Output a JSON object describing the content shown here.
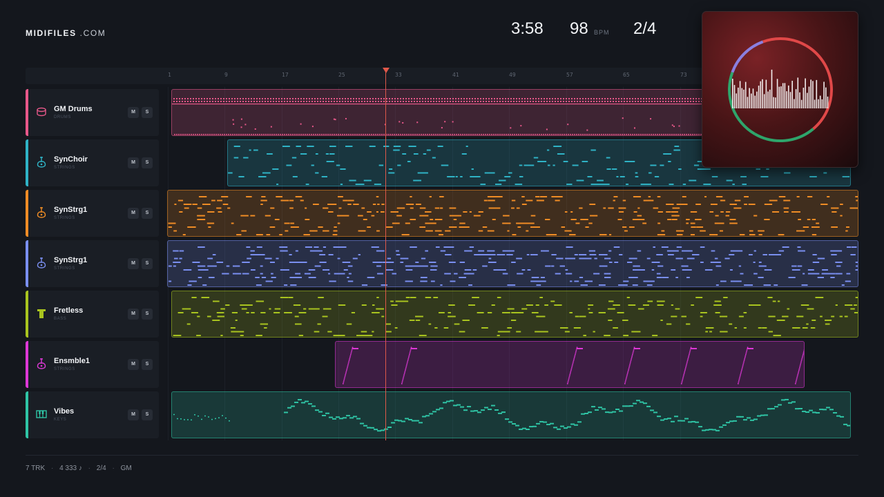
{
  "brand": {
    "name": "MIDIFILES",
    "suffix": ".COM"
  },
  "header": {
    "duration": "3:58",
    "bpm": "98",
    "bpm_unit": "BPM",
    "meter": "2/4"
  },
  "ruler": {
    "ticks": [
      "1",
      "9",
      "17",
      "25",
      "33",
      "41",
      "49",
      "57",
      "65",
      "73"
    ]
  },
  "buttons": {
    "mute": "M",
    "solo": "S"
  },
  "tracks": [
    {
      "name": "GM Drums",
      "sub": "DRUMS",
      "color": "#e8588a",
      "icon": "drum-icon"
    },
    {
      "name": "SynChoir",
      "sub": "STRINGS",
      "color": "#2fb3c6",
      "icon": "guitar-icon"
    },
    {
      "name": "SynStrg1",
      "sub": "STRINGS",
      "color": "#ef8c25",
      "icon": "guitar-icon"
    },
    {
      "name": "SynStrg1",
      "sub": "STRINGS",
      "color": "#7a8ff0",
      "icon": "guitar-icon"
    },
    {
      "name": "Fretless",
      "sub": "BASS",
      "color": "#a9c41f",
      "icon": "bass-icon"
    },
    {
      "name": "Ensmble1",
      "sub": "STRINGS",
      "color": "#dd38d6",
      "icon": "guitar-icon"
    },
    {
      "name": "Vibes",
      "sub": "KEYS",
      "color": "#2fc4a5",
      "icon": "keys-icon"
    }
  ],
  "footer": {
    "tracks": "7 TRK",
    "notes": "4 333 ♪",
    "meter": "2/4",
    "standard": "GM",
    "sep": "·"
  }
}
